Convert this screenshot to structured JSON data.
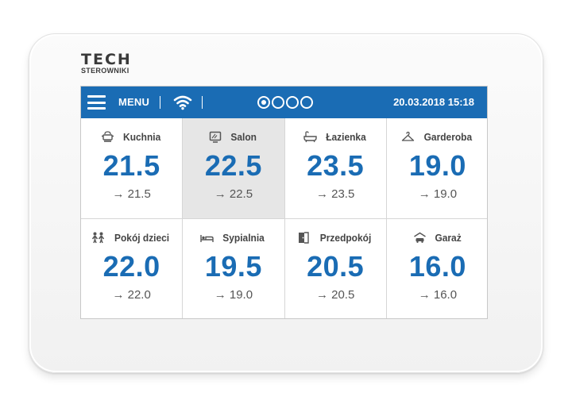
{
  "brand": {
    "name": "TECH",
    "sub": "STEROWNIKI"
  },
  "topbar": {
    "menu_label": "MENU",
    "wifi_icon": "wifi-icon",
    "pages": {
      "count": 4,
      "active": 1
    },
    "datetime": "20.03.2018 15:18"
  },
  "colors": {
    "accent": "#1a6cb4",
    "selected_tile": "#e6e6e6"
  },
  "zones": [
    {
      "name": "Kuchnia",
      "temp": "21.5",
      "set": "→ 21.5",
      "icon": "kitchen-pot-icon"
    },
    {
      "name": "Salon",
      "temp": "22.5",
      "set": "→ 22.5",
      "icon": "tv-icon",
      "selected": true
    },
    {
      "name": "Łazienka",
      "temp": "23.5",
      "set": "→ 23.5",
      "icon": "bathtub-icon"
    },
    {
      "name": "Garderoba",
      "temp": "19.0",
      "set": "→ 19.0",
      "icon": "hanger-icon"
    },
    {
      "name": "Pokój dzieci",
      "temp": "22.0",
      "set": "→ 22.0",
      "icon": "children-icon"
    },
    {
      "name": "Sypialnia",
      "temp": "19.5",
      "set": "→ 19.0",
      "icon": "bed-icon"
    },
    {
      "name": "Przedpokój",
      "temp": "20.5",
      "set": "→ 20.5",
      "icon": "door-icon"
    },
    {
      "name": "Garaż",
      "temp": "16.0",
      "set": "→ 16.0",
      "icon": "car-icon"
    }
  ]
}
